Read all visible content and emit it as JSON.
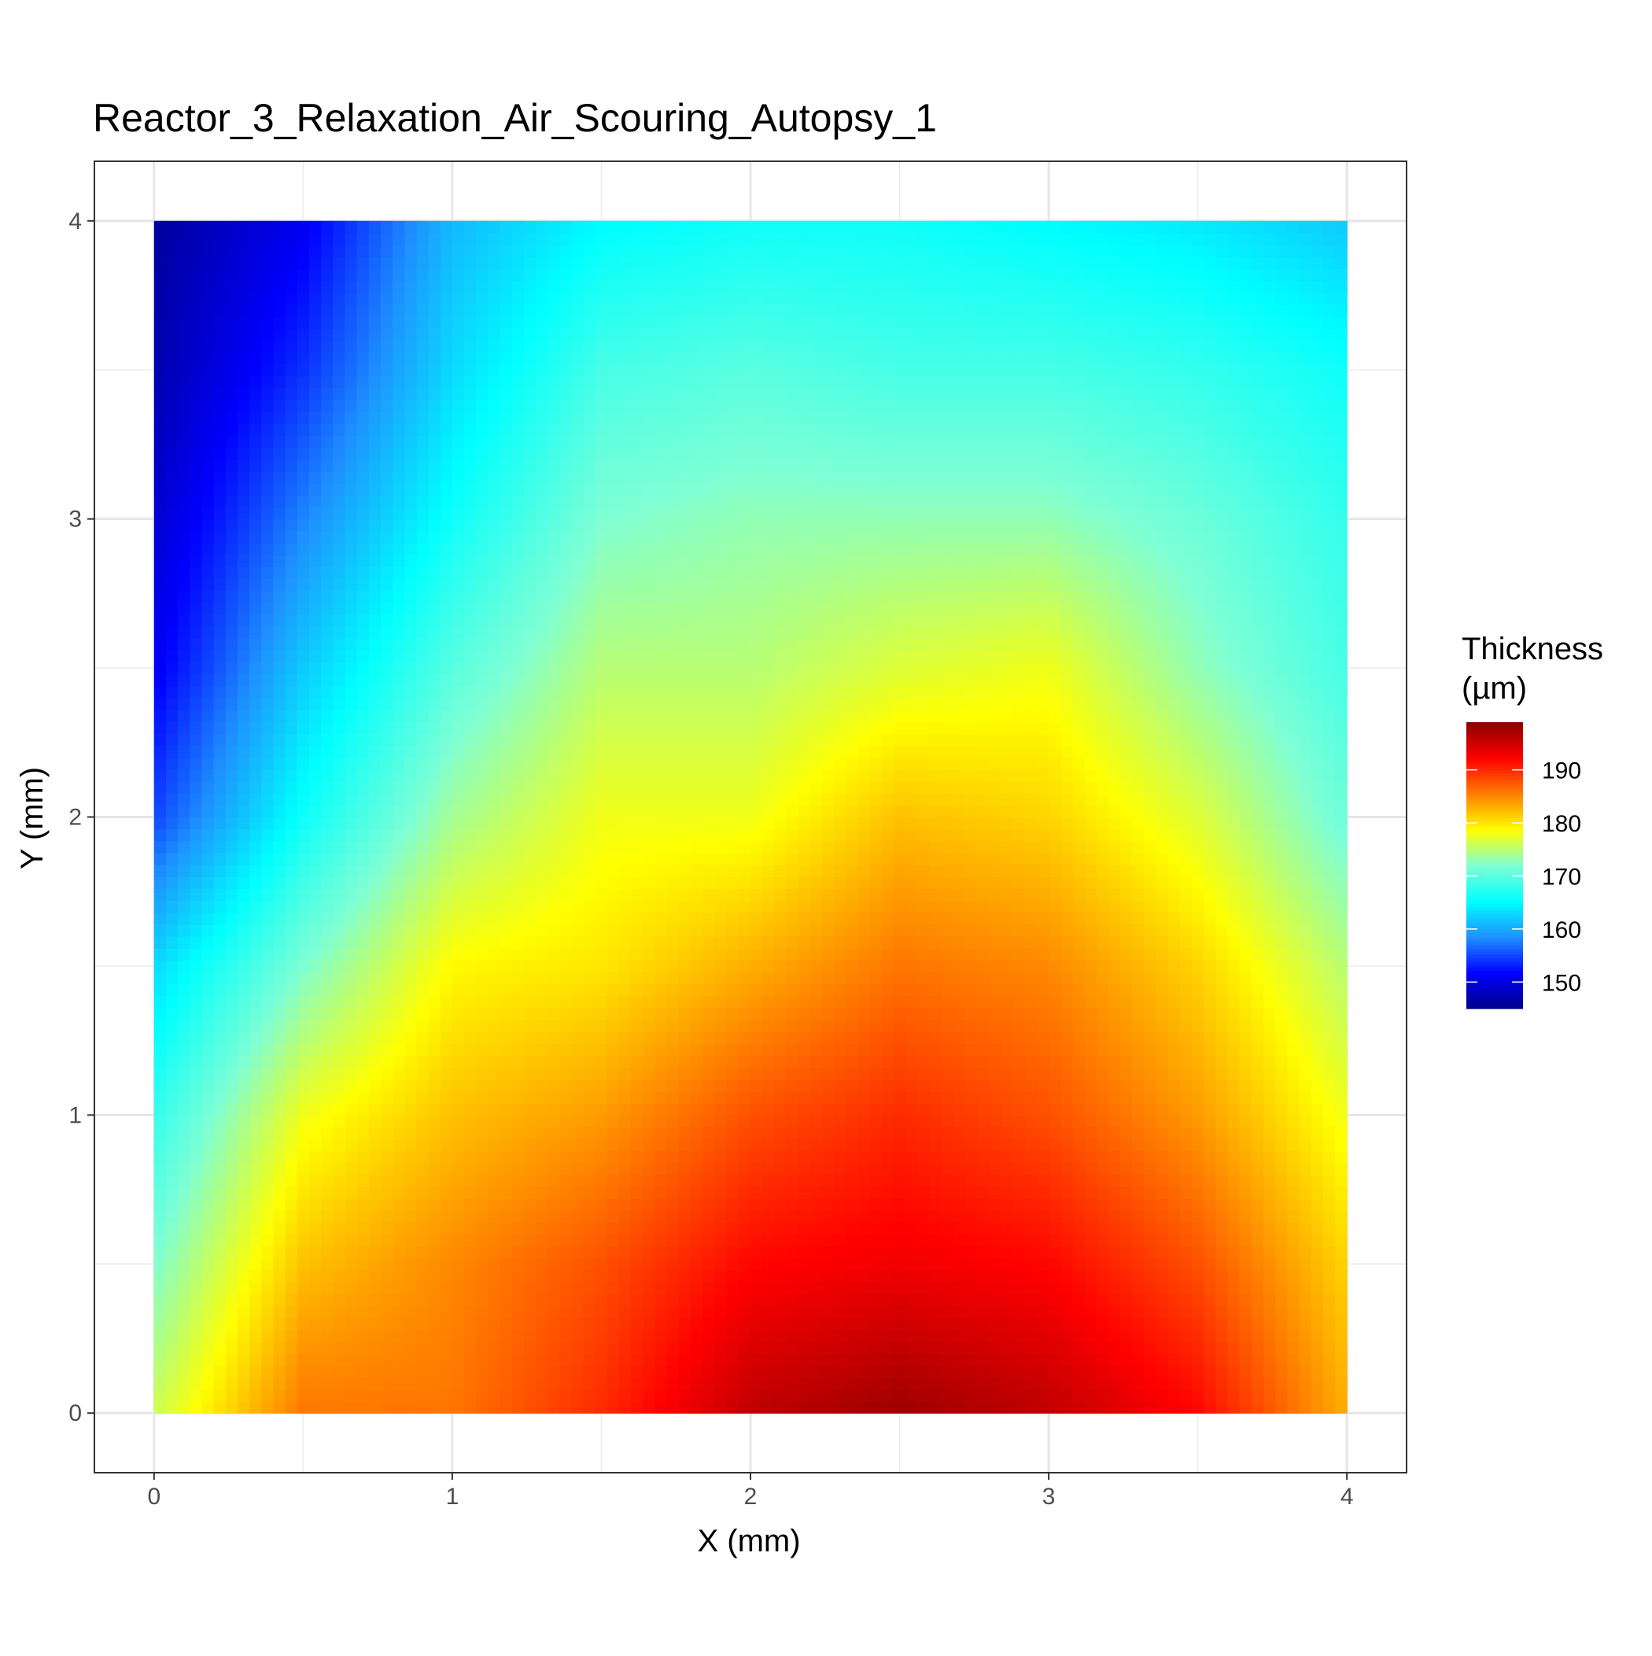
{
  "chart_data": {
    "type": "heatmap",
    "title": "Reactor_3_Relaxation_Air_Scouring_Autopsy_1",
    "xlabel": "X (mm)",
    "ylabel": "Y (mm)",
    "xlim": [
      -0.2,
      4.2
    ],
    "ylim": [
      -0.2,
      4.2
    ],
    "x_ticks": [
      0,
      1,
      2,
      3,
      4
    ],
    "y_ticks": [
      0,
      1,
      2,
      3,
      4
    ],
    "grid": true,
    "legend": {
      "title_line1": "Thickness",
      "title_line2": "(µm)",
      "placement": "right",
      "range": [
        145,
        199
      ],
      "ticks": [
        150,
        160,
        170,
        180,
        190
      ]
    },
    "colorscale": [
      "#00008b",
      "#0000ff",
      "#1e90ff",
      "#00ffff",
      "#7fffd4",
      "#ffff00",
      "#ff7f00",
      "#ff0000",
      "#8b0000"
    ],
    "x": [
      0,
      0.5,
      1,
      1.5,
      2,
      2.5,
      3,
      3.5,
      4
    ],
    "y": [
      0,
      0.5,
      1,
      1.5,
      2,
      2.5,
      3,
      3.5,
      4
    ],
    "z": [
      [
        176,
        186,
        186,
        190,
        196,
        198,
        196,
        192,
        183
      ],
      [
        172,
        182,
        185,
        188,
        192,
        193,
        192,
        188,
        181
      ],
      [
        168,
        178,
        182,
        184,
        188,
        190,
        188,
        184,
        178
      ],
      [
        163,
        172,
        179,
        180,
        183,
        186,
        185,
        181,
        175
      ],
      [
        155,
        166,
        174,
        178,
        178,
        182,
        181,
        177,
        171
      ],
      [
        151,
        162,
        170,
        175,
        175,
        177,
        178,
        173,
        169
      ],
      [
        149,
        158,
        166,
        172,
        173,
        173,
        173,
        171,
        168
      ],
      [
        147,
        154,
        163,
        169,
        170,
        169,
        169,
        168,
        166
      ],
      [
        146,
        151,
        161,
        165,
        166,
        166,
        165,
        164,
        162
      ]
    ]
  }
}
